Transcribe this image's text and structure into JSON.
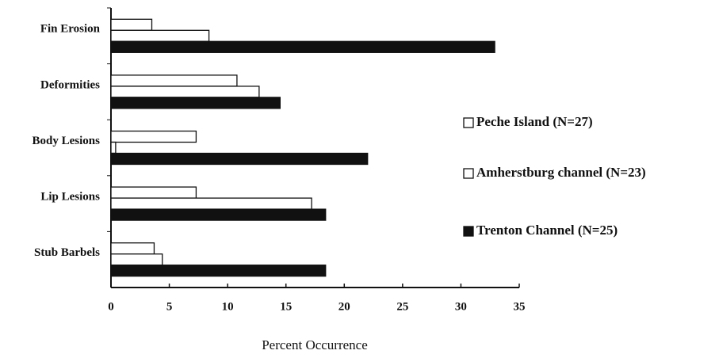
{
  "chart_data": {
    "type": "bar",
    "orientation": "horizontal",
    "xlabel": "Percent Occurrence",
    "categories": [
      "Fin Erosion",
      "Deformities",
      "Body Lesions",
      "Lip Lesions",
      "Stub Barbels"
    ],
    "series": [
      {
        "name": "Peche Island (N=27)",
        "color": "#ffffff",
        "values": [
          3.5,
          10.8,
          7.3,
          7.3,
          3.7
        ]
      },
      {
        "name": "Amherstburg channel (N=23)",
        "color": "#ffffff",
        "values": [
          8.4,
          12.7,
          0.4,
          17.2,
          4.4
        ]
      },
      {
        "name": "Trenton Channel (N=25)",
        "color": "#111111",
        "values": [
          32.9,
          14.5,
          22.0,
          18.4,
          18.4
        ]
      }
    ],
    "xlim": [
      0,
      35
    ],
    "xticks": [
      0,
      5,
      10,
      15,
      20,
      25,
      30,
      35
    ],
    "legend": "right"
  }
}
